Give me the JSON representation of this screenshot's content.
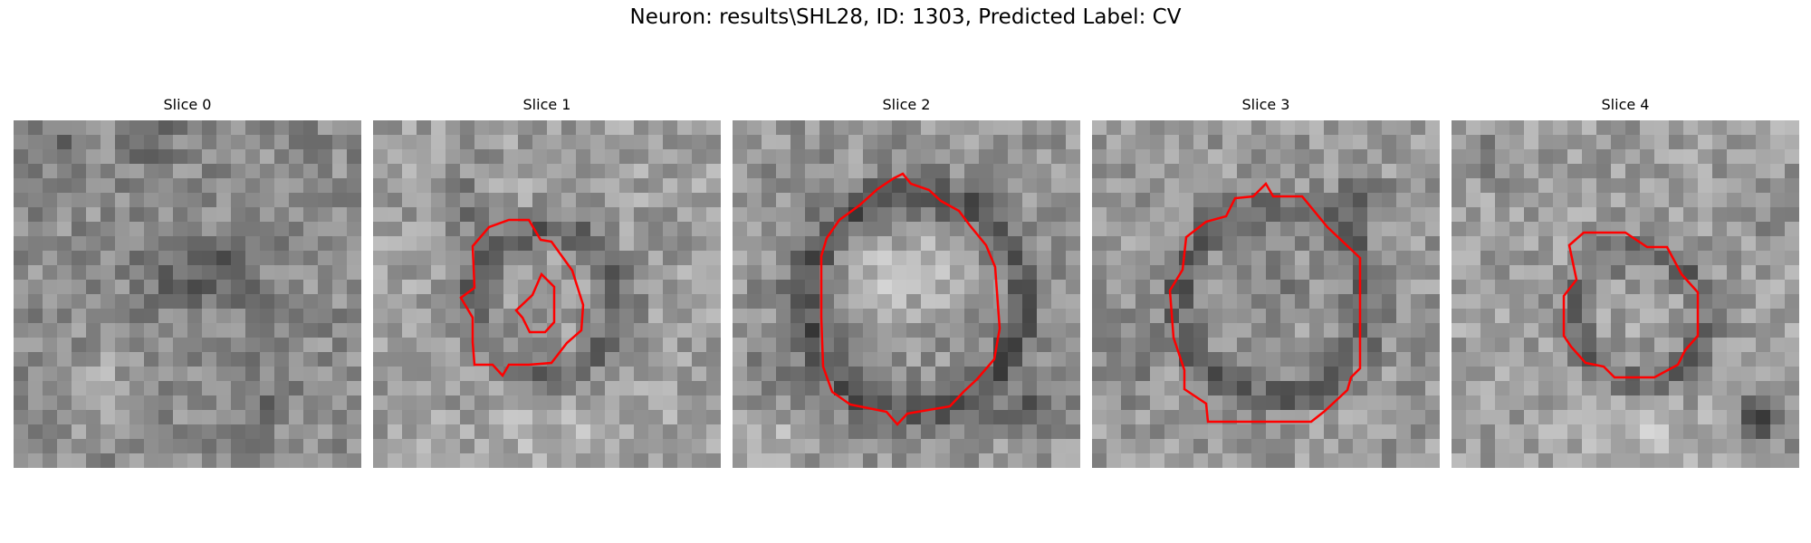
{
  "figure": {
    "title": "Neuron: results\\SHL28, ID: 1303, Predicted Label: CV",
    "contour_color": "#ff0000"
  },
  "panels": [
    {
      "title": "Slice 0"
    },
    {
      "title": "Slice 1"
    },
    {
      "title": "Slice 2"
    },
    {
      "title": "Slice 3"
    },
    {
      "title": "Slice 4"
    }
  ]
}
